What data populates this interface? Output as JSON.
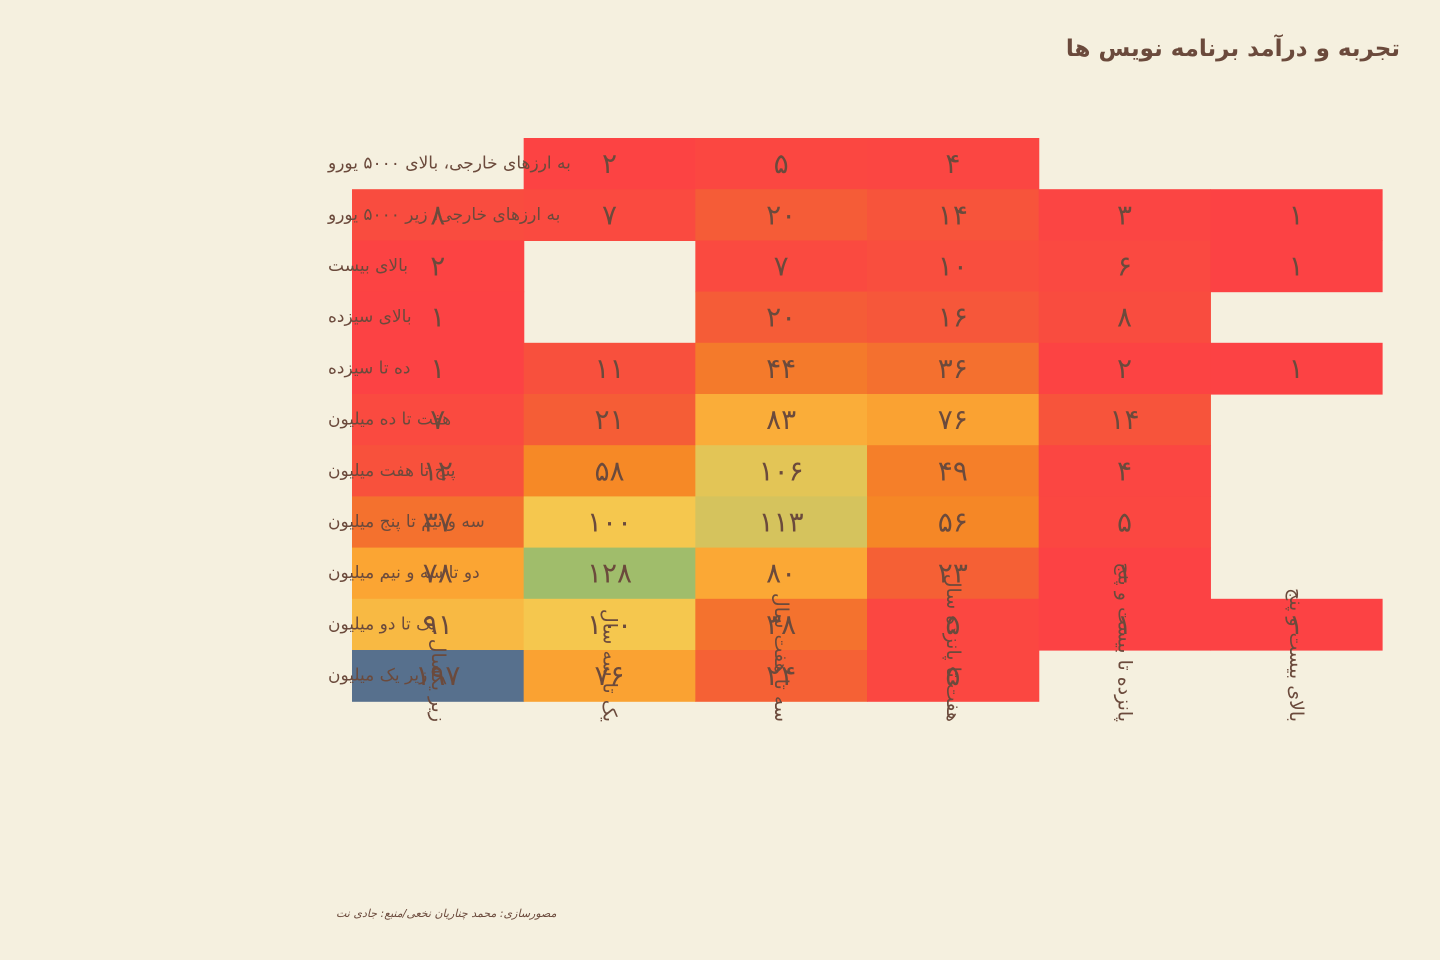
{
  "chart_data": {
    "type": "heatmap",
    "title": "تجربه و درآمد برنامه نویس ها",
    "rows": [
      "به ارزهای خارجی، بالای ۵۰۰۰ یورو",
      "به ارزهای خارجی، زیر ۵۰۰۰ یورو",
      "بالای بیست",
      "بالای سیزده",
      "ده تا سیزده",
      "هفت تا ده میلیون",
      "پنج تا هفت میلیون",
      "سه و نیم تا پنج میلیون",
      "دو تا سه و نیم میلیون",
      "یک تا دو میلیون",
      "زیر یک میلیون"
    ],
    "columns": [
      "زیر یکسال",
      "یک تا سه سال",
      "سه تا هفت سال",
      "هفت تا پانزده سال",
      "پانزده تا بیست و پنج",
      "بالای بیست و پنج"
    ],
    "values": [
      [
        null,
        2,
        5,
        4,
        null,
        null
      ],
      [
        8,
        7,
        20,
        14,
        3,
        1
      ],
      [
        2,
        null,
        7,
        10,
        6,
        1
      ],
      [
        1,
        null,
        20,
        16,
        8,
        null
      ],
      [
        1,
        11,
        44,
        36,
        2,
        1
      ],
      [
        7,
        21,
        83,
        76,
        14,
        null
      ],
      [
        12,
        58,
        106,
        49,
        4,
        null
      ],
      [
        37,
        100,
        113,
        56,
        5,
        null
      ],
      [
        78,
        128,
        80,
        23,
        1,
        null
      ],
      [
        91,
        100,
        38,
        5,
        1,
        1
      ],
      [
        197,
        76,
        24,
        5,
        null,
        null
      ]
    ],
    "display_values": [
      [
        null,
        "۲",
        "۵",
        "۴",
        null,
        null
      ],
      [
        "۸",
        "۷",
        "۲۰",
        "۱۴",
        "۳",
        "۱"
      ],
      [
        "۲",
        null,
        "۷",
        "۱۰",
        "۶",
        "۱"
      ],
      [
        "۱",
        null,
        "۲۰",
        "۱۶",
        "۸",
        null
      ],
      [
        "۱",
        "۱۱",
        "۴۴",
        "۳۶",
        "۲",
        "۱"
      ],
      [
        "۷",
        "۲۱",
        "۸۳",
        "۷۶",
        "۱۴",
        null
      ],
      [
        "۱۲",
        "۵۸",
        "۱۰۶",
        "۴۹",
        "۴",
        null
      ],
      [
        "۳۷",
        "۱۰۰",
        "۱۱۳",
        "۵۶",
        "۵",
        null
      ],
      [
        "۷۸",
        "۱۲۸",
        "۸۰",
        "۲۳",
        "۱",
        null
      ],
      [
        "۹۱",
        "۱۰۰",
        "۳۸",
        "۵",
        "۱",
        "۱"
      ],
      [
        "۱۹۷",
        "۷۶",
        "۲۴",
        "۵",
        null,
        null
      ]
    ],
    "color_scale": {
      "stops": [
        {
          "value": 1,
          "color": "#fc4244"
        },
        {
          "value": 20,
          "color": "#f55c37"
        },
        {
          "value": 45,
          "color": "#f47b2a"
        },
        {
          "value": 60,
          "color": "#f68b25"
        },
        {
          "value": 80,
          "color": "#fba835"
        },
        {
          "value": 100,
          "color": "#f5c74e"
        },
        {
          "value": 106,
          "color": "#e3c556"
        },
        {
          "value": 113,
          "color": "#d5c35d"
        },
        {
          "value": 128,
          "color": "#a0bd6b"
        },
        {
          "value": 197,
          "color": "#57708d"
        }
      ]
    },
    "background": "#f5f0df",
    "text_color": "#6b4a3c"
  },
  "credit": "مصورسازی: محمد چناریان نخعی/منبع: جادی نت"
}
